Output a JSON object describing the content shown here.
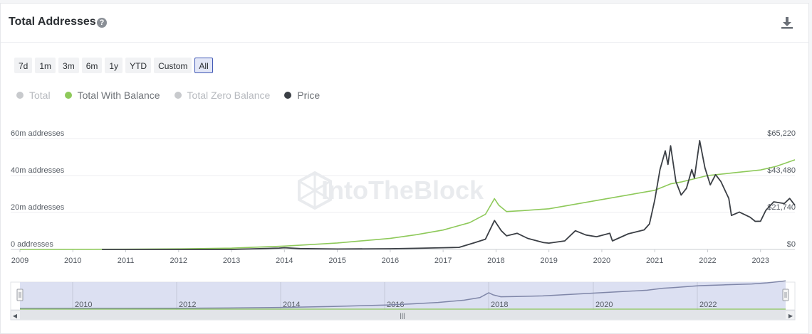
{
  "header": {
    "title": "Total Addresses",
    "help_glyph": "?"
  },
  "range_buttons": [
    {
      "label": "7d",
      "active": false
    },
    {
      "label": "1m",
      "active": false
    },
    {
      "label": "3m",
      "active": false
    },
    {
      "label": "6m",
      "active": false
    },
    {
      "label": "1y",
      "active": false
    },
    {
      "label": "YTD",
      "active": false
    },
    {
      "label": "Custom",
      "active": false
    },
    {
      "label": "All",
      "active": true
    }
  ],
  "legend": [
    {
      "label": "Total",
      "color": "#c8cacd",
      "text_color": "#b7babf",
      "enabled": false
    },
    {
      "label": "Total With Balance",
      "color": "#8ec95a",
      "text_color": "#6f7378",
      "enabled": true
    },
    {
      "label": "Total Zero Balance",
      "color": "#c8cacd",
      "text_color": "#b7babf",
      "enabled": false
    },
    {
      "label": "Price",
      "color": "#3b3f45",
      "text_color": "#6f7378",
      "enabled": true
    }
  ],
  "watermark": "IntoTheBlock",
  "chart_data": {
    "type": "line",
    "x_start": 2009.0,
    "x_end": 2023.65,
    "x_ticks": [
      "2009",
      "2010",
      "2011",
      "2012",
      "2013",
      "2014",
      "2015",
      "2016",
      "2017",
      "2018",
      "2019",
      "2020",
      "2021",
      "2022",
      "2023"
    ],
    "y_left": {
      "ticks": [
        "0 addresses",
        "20m addresses",
        "40m addresses",
        "60m addresses"
      ],
      "range": [
        0,
        60000000
      ]
    },
    "y_right": {
      "ticks": [
        "$0",
        "$21,740",
        "$43,480",
        "$65,220"
      ],
      "range": [
        0,
        65220
      ]
    },
    "series": [
      {
        "name": "Total With Balance",
        "axis": "left",
        "color": "#8ec95a",
        "points": [
          [
            2009.0,
            0
          ],
          [
            2011.0,
            100000
          ],
          [
            2012.0,
            300000
          ],
          [
            2013.0,
            700000
          ],
          [
            2014.0,
            1800000
          ],
          [
            2015.0,
            3500000
          ],
          [
            2016.0,
            6000000
          ],
          [
            2016.5,
            8000000
          ],
          [
            2017.0,
            10500000
          ],
          [
            2017.5,
            14500000
          ],
          [
            2017.8,
            19000000
          ],
          [
            2017.97,
            27500000
          ],
          [
            2018.05,
            24000000
          ],
          [
            2018.2,
            20500000
          ],
          [
            2018.5,
            21000000
          ],
          [
            2019.0,
            22000000
          ],
          [
            2019.5,
            24500000
          ],
          [
            2020.0,
            27000000
          ],
          [
            2020.5,
            29500000
          ],
          [
            2021.0,
            32000000
          ],
          [
            2021.3,
            35500000
          ],
          [
            2021.5,
            36500000
          ],
          [
            2022.0,
            40000000
          ],
          [
            2022.5,
            41500000
          ],
          [
            2023.0,
            43000000
          ],
          [
            2023.3,
            45000000
          ],
          [
            2023.65,
            48500000
          ]
        ]
      },
      {
        "name": "Price",
        "axis": "right",
        "color": "#3b3f45",
        "points": [
          [
            2010.55,
            0
          ],
          [
            2013.0,
            20
          ],
          [
            2013.9,
            800
          ],
          [
            2014.0,
            1000
          ],
          [
            2014.3,
            500
          ],
          [
            2015.0,
            250
          ],
          [
            2016.0,
            420
          ],
          [
            2016.5,
            650
          ],
          [
            2017.0,
            1000
          ],
          [
            2017.3,
            1200
          ],
          [
            2017.6,
            4000
          ],
          [
            2017.8,
            6000
          ],
          [
            2017.97,
            17000
          ],
          [
            2018.1,
            11000
          ],
          [
            2018.2,
            8000
          ],
          [
            2018.4,
            9500
          ],
          [
            2018.6,
            6500
          ],
          [
            2018.9,
            4000
          ],
          [
            2019.0,
            3700
          ],
          [
            2019.3,
            5000
          ],
          [
            2019.5,
            11000
          ],
          [
            2019.7,
            8500
          ],
          [
            2019.9,
            7500
          ],
          [
            2020.15,
            9500
          ],
          [
            2020.2,
            5000
          ],
          [
            2020.5,
            9200
          ],
          [
            2020.8,
            11500
          ],
          [
            2020.9,
            15000
          ],
          [
            2021.0,
            29000
          ],
          [
            2021.1,
            47000
          ],
          [
            2021.2,
            58000
          ],
          [
            2021.25,
            50000
          ],
          [
            2021.3,
            61000
          ],
          [
            2021.4,
            40000
          ],
          [
            2021.5,
            32000
          ],
          [
            2021.6,
            36000
          ],
          [
            2021.7,
            47000
          ],
          [
            2021.75,
            42000
          ],
          [
            2021.85,
            64000
          ],
          [
            2021.95,
            48000
          ],
          [
            2022.05,
            38000
          ],
          [
            2022.15,
            44000
          ],
          [
            2022.25,
            40000
          ],
          [
            2022.4,
            30000
          ],
          [
            2022.45,
            20000
          ],
          [
            2022.6,
            22000
          ],
          [
            2022.8,
            19000
          ],
          [
            2022.9,
            16500
          ],
          [
            2023.0,
            16600
          ],
          [
            2023.1,
            23000
          ],
          [
            2023.25,
            28000
          ],
          [
            2023.45,
            27000
          ],
          [
            2023.55,
            30000
          ],
          [
            2023.65,
            26000
          ]
        ]
      }
    ]
  },
  "navigator": {
    "year_labels": [
      "2010",
      "2012",
      "2014",
      "2016",
      "2018",
      "2020",
      "2022"
    ],
    "grip_glyph": "|||",
    "left_arrow": "◀",
    "right_arrow": "▶"
  }
}
